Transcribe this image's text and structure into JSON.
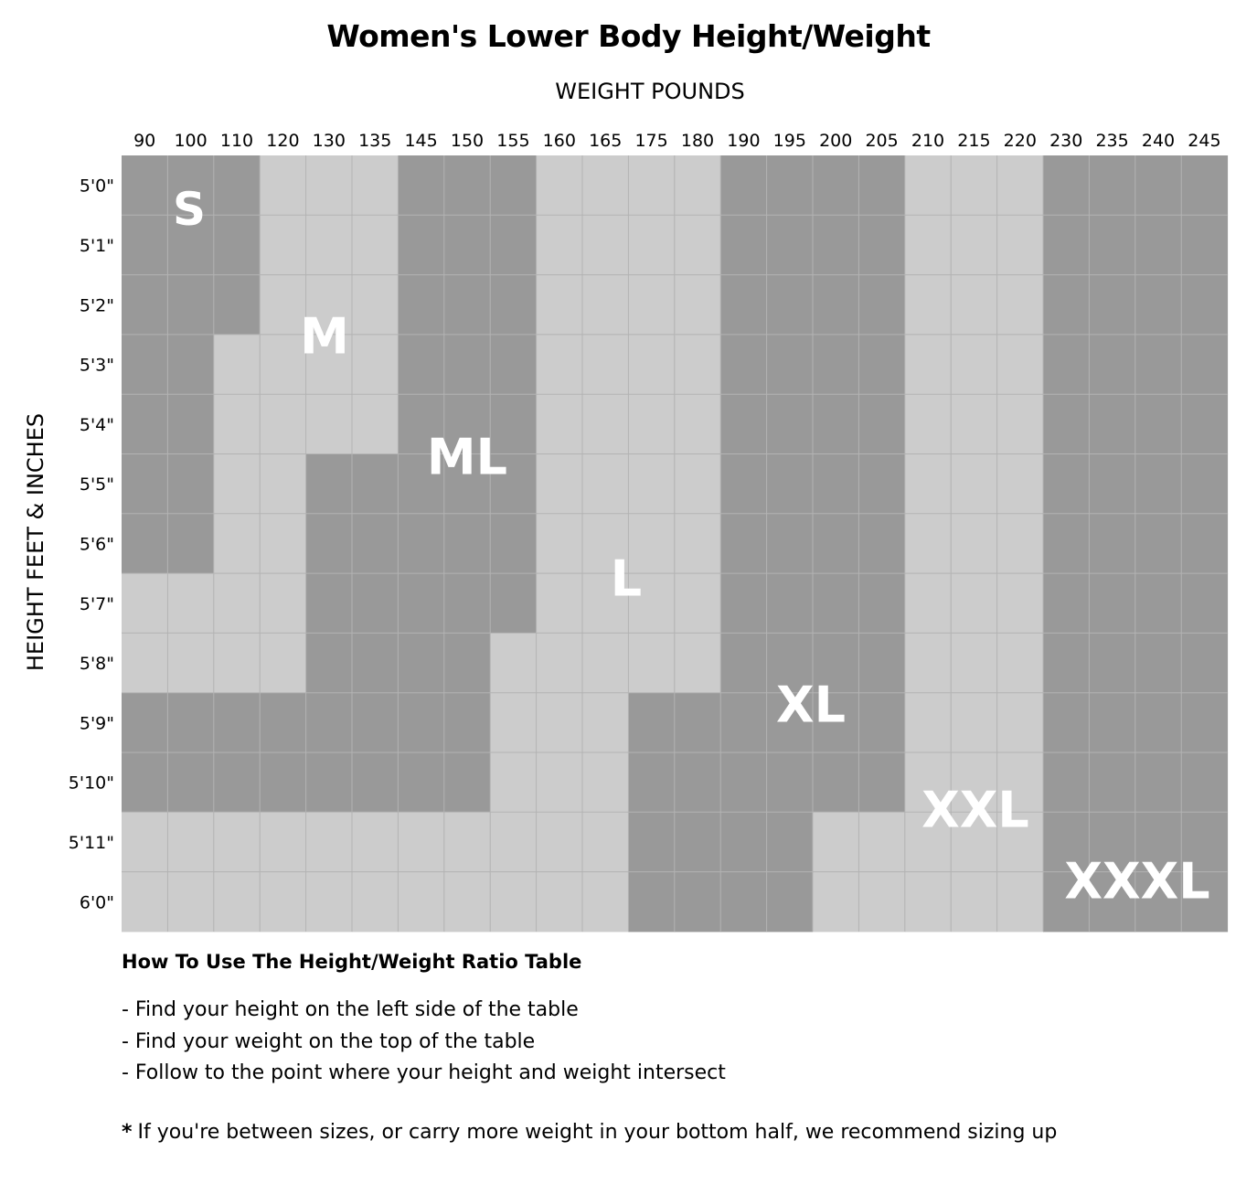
{
  "chart_data": {
    "type": "heatmap",
    "title": "Women's Lower Body Height/Weight",
    "xlabel": "WEIGHT POUNDS",
    "ylabel": "HEIGHT FEET & INCHES",
    "x_ticks": [
      "90",
      "100",
      "110",
      "120",
      "130",
      "135",
      "145",
      "150",
      "155",
      "160",
      "165",
      "175",
      "180",
      "190",
      "195",
      "200",
      "205",
      "210",
      "215",
      "220",
      "230",
      "235",
      "240",
      "245"
    ],
    "y_ticks": [
      "5'0\"",
      "5'1\"",
      "5'2\"",
      "5'3\"",
      "5'4\"",
      "5'5\"",
      "5'6\"",
      "5'7\"",
      "5'8\"",
      "5'9\"",
      "5'10\"",
      "5'11\"",
      "6'0\""
    ],
    "sizes": [
      "S",
      "M",
      "ML",
      "L",
      "XL",
      "XXL",
      "XXXL"
    ],
    "grid": [
      [
        "S",
        "S",
        "S",
        "M",
        "M",
        "M",
        "ML",
        "ML",
        "ML",
        "L",
        "L",
        "L",
        "L",
        "XL",
        "XL",
        "XL",
        "XL",
        "XXL",
        "XXL",
        "XXL",
        "XXXL",
        "XXXL",
        "XXXL",
        "XXXL"
      ],
      [
        "S",
        "S",
        "S",
        "M",
        "M",
        "M",
        "ML",
        "ML",
        "ML",
        "L",
        "L",
        "L",
        "L",
        "XL",
        "XL",
        "XL",
        "XL",
        "XXL",
        "XXL",
        "XXL",
        "XXXL",
        "XXXL",
        "XXXL",
        "XXXL"
      ],
      [
        "S",
        "S",
        "S",
        "M",
        "M",
        "M",
        "ML",
        "ML",
        "ML",
        "L",
        "L",
        "L",
        "L",
        "XL",
        "XL",
        "XL",
        "XL",
        "XXL",
        "XXL",
        "XXL",
        "XXXL",
        "XXXL",
        "XXXL",
        "XXXL"
      ],
      [
        "S",
        "S",
        "M",
        "M",
        "M",
        "M",
        "ML",
        "ML",
        "ML",
        "L",
        "L",
        "L",
        "L",
        "XL",
        "XL",
        "XL",
        "XL",
        "XXL",
        "XXL",
        "XXL",
        "XXXL",
        "XXXL",
        "XXXL",
        "XXXL"
      ],
      [
        "S",
        "S",
        "M",
        "M",
        "M",
        "M",
        "ML",
        "ML",
        "ML",
        "L",
        "L",
        "L",
        "L",
        "XL",
        "XL",
        "XL",
        "XL",
        "XXL",
        "XXL",
        "XXL",
        "XXXL",
        "XXXL",
        "XXXL",
        "XXXL"
      ],
      [
        "S",
        "S",
        "M",
        "M",
        "ML",
        "ML",
        "ML",
        "ML",
        "ML",
        "L",
        "L",
        "L",
        "L",
        "XL",
        "XL",
        "XL",
        "XL",
        "XXL",
        "XXL",
        "XXL",
        "XXXL",
        "XXXL",
        "XXXL",
        "XXXL"
      ],
      [
        "S",
        "S",
        "M",
        "M",
        "ML",
        "ML",
        "ML",
        "ML",
        "ML",
        "L",
        "L",
        "L",
        "L",
        "XL",
        "XL",
        "XL",
        "XL",
        "XXL",
        "XXL",
        "XXL",
        "XXXL",
        "XXXL",
        "XXXL",
        "XXXL"
      ],
      [
        "M",
        "M",
        "M",
        "M",
        "ML",
        "ML",
        "ML",
        "ML",
        "ML",
        "L",
        "L",
        "L",
        "L",
        "XL",
        "XL",
        "XL",
        "XL",
        "XXL",
        "XXL",
        "XXL",
        "XXXL",
        "XXXL",
        "XXXL",
        "XXXL"
      ],
      [
        "M",
        "M",
        "M",
        "M",
        "ML",
        "ML",
        "ML",
        "ML",
        "L",
        "L",
        "L",
        "L",
        "L",
        "XL",
        "XL",
        "XL",
        "XL",
        "XXL",
        "XXL",
        "XXL",
        "XXXL",
        "XXXL",
        "XXXL",
        "XXXL"
      ],
      [
        "ML",
        "ML",
        "ML",
        "ML",
        "ML",
        "ML",
        "ML",
        "ML",
        "L",
        "L",
        "L",
        "XL",
        "XL",
        "XL",
        "XL",
        "XL",
        "XL",
        "XXL",
        "XXL",
        "XXL",
        "XXXL",
        "XXXL",
        "XXXL",
        "XXXL"
      ],
      [
        "ML",
        "ML",
        "ML",
        "ML",
        "ML",
        "ML",
        "ML",
        "ML",
        "L",
        "L",
        "L",
        "XL",
        "XL",
        "XL",
        "XL",
        "XL",
        "XL",
        "XXL",
        "XXL",
        "XXL",
        "XXXL",
        "XXXL",
        "XXXL",
        "XXXL"
      ],
      [
        "L",
        "L",
        "L",
        "L",
        "L",
        "L",
        "L",
        "L",
        "L",
        "L",
        "L",
        "XL",
        "XL",
        "XL",
        "XL",
        "XXL",
        "XXL",
        "XXL",
        "XXL",
        "XXL",
        "XXXL",
        "XXXL",
        "XXXL",
        "XXXL"
      ],
      [
        "L",
        "L",
        "L",
        "L",
        "L",
        "L",
        "L",
        "L",
        "L",
        "L",
        "L",
        "XL",
        "XL",
        "XL",
        "XL",
        "XXL",
        "XXL",
        "XXL",
        "XXL",
        "XXL",
        "XXXL",
        "XXXL",
        "XXXL",
        "XXXL"
      ]
    ],
    "colors": {
      "S": "#999999",
      "M": "#cccccc",
      "ML": "#999999",
      "L": "#cccccc",
      "XL": "#999999",
      "XXL": "#cccccc",
      "XXXL": "#999999",
      "gridline": "#b3b3b3",
      "label": "#ffffff"
    },
    "grid_lines": true
  },
  "instructions": {
    "title": "How To Use The Height/Weight Ratio Table",
    "steps": [
      "- Find your height on the left side of the table",
      "- Find your weight on the top of the table",
      "- Follow to the point where your height and weight intersect"
    ],
    "note_marker": "*",
    "note": "If you're between sizes, or carry more weight in your bottom half, we recommend sizing up"
  }
}
